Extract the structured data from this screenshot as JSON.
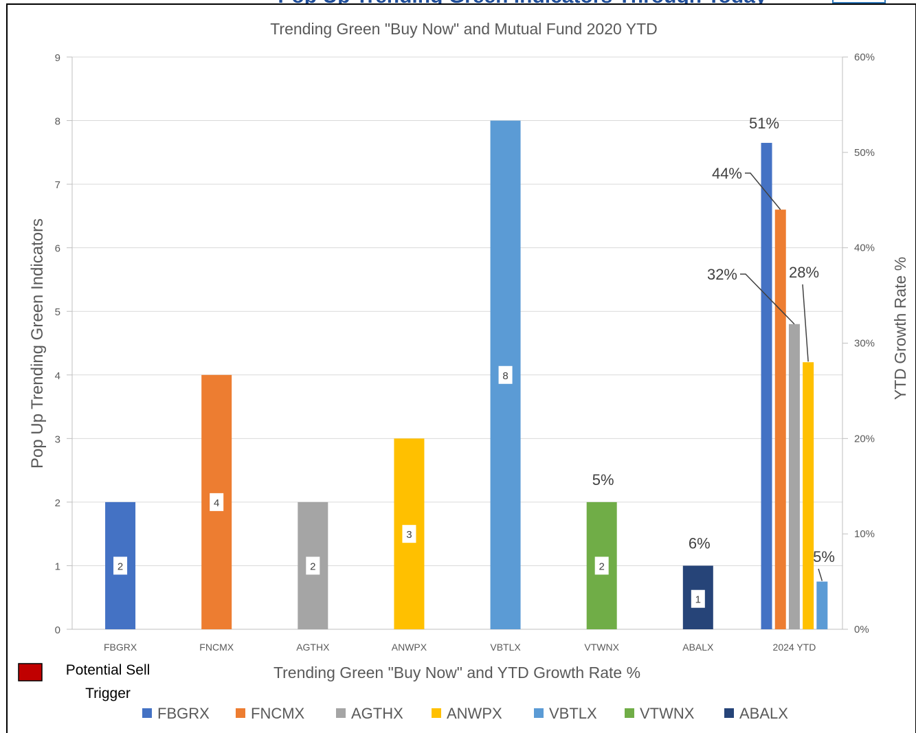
{
  "header": {
    "cut_title": "Pop Up Trending Green Indicators Through Today"
  },
  "chart_data": {
    "type": "bar",
    "title": "Trending Green \"Buy Now\" and Mutual Fund 2020 YTD",
    "xlabel": "Trending Green \"Buy Now\" and YTD Growth Rate %",
    "ylabel": "Pop Up Trending Green Indicators",
    "y2label": "YTD Growth Rate %",
    "ylim": [
      0,
      9
    ],
    "yticks": [
      "0",
      "1",
      "2",
      "3",
      "4",
      "5",
      "6",
      "7",
      "8",
      "9"
    ],
    "y2lim": [
      0,
      60
    ],
    "y2ticks": [
      "0%",
      "10%",
      "20%",
      "30%",
      "40%",
      "50%",
      "60%"
    ],
    "grid": true,
    "categories": [
      "FBGRX",
      "FNCMX",
      "AGTHX",
      "ANWPX",
      "VBTLX",
      "VTWNX",
      "ABALX",
      "2024 YTD"
    ],
    "indicators": [
      {
        "fund": "FBGRX",
        "value": 2,
        "label": "2",
        "color": "#4472C4"
      },
      {
        "fund": "FNCMX",
        "value": 4,
        "label": "4",
        "color": "#ED7D31"
      },
      {
        "fund": "AGTHX",
        "value": 2,
        "label": "2",
        "color": "#A5A5A5"
      },
      {
        "fund": "ANWPX",
        "value": 3,
        "label": "3",
        "color": "#FFC000"
      },
      {
        "fund": "VBTLX",
        "value": 8,
        "label": "8",
        "color": "#5B9BD5"
      },
      {
        "fund": "VTWNX",
        "value": 2,
        "label": "2",
        "color": "#70AD47",
        "extra_label": "5%"
      },
      {
        "fund": "ABALX",
        "value": 1,
        "label": "1",
        "color": "#264478",
        "extra_label": "6%"
      }
    ],
    "growth": [
      {
        "fund": "FBGRX",
        "value": 51,
        "label": "51%",
        "color": "#4472C4"
      },
      {
        "fund": "FNCMX",
        "value": 44,
        "label": "44%",
        "color": "#ED7D31"
      },
      {
        "fund": "AGTHX",
        "value": 32,
        "label": "32%",
        "color": "#A5A5A5"
      },
      {
        "fund": "ANWPX",
        "value": 28,
        "label": "28%",
        "color": "#FFC000"
      },
      {
        "fund": "VBTLX",
        "value": 5,
        "label": "5%",
        "color": "#5B9BD5"
      }
    ],
    "legend": [
      {
        "name": "FBGRX",
        "color": "#4472C4"
      },
      {
        "name": "FNCMX",
        "color": "#ED7D31"
      },
      {
        "name": "AGTHX",
        "color": "#A5A5A5"
      },
      {
        "name": "ANWPX",
        "color": "#FFC000"
      },
      {
        "name": "VBTLX",
        "color": "#5B9BD5"
      },
      {
        "name": "VTWNX",
        "color": "#70AD47"
      },
      {
        "name": "ABALX",
        "color": "#264478"
      }
    ],
    "legend_position": "bottom",
    "sell_trigger": {
      "label_line1": "Potential Sell",
      "label_line2": "Trigger",
      "color": "#C00000"
    }
  }
}
